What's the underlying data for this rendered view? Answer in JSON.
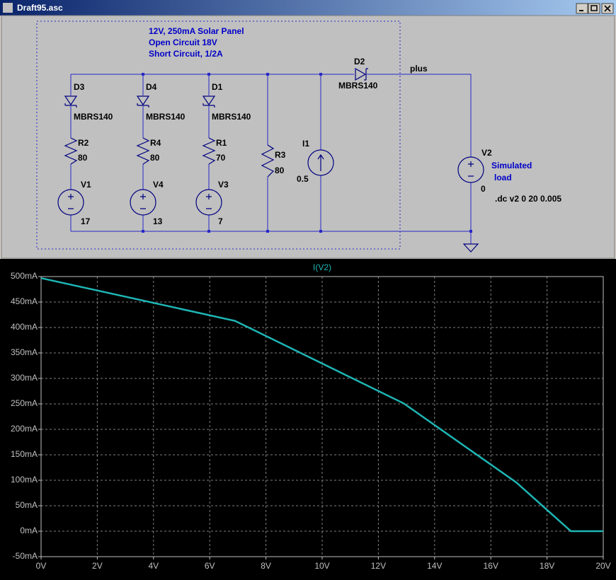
{
  "window": {
    "title": "Draft95.asc"
  },
  "schematic": {
    "notes": [
      "12V, 250mA Solar Panel",
      "Open Circuit 18V",
      "Short Circuit, 1/2A"
    ],
    "components": [
      {
        "name": "D3",
        "value": "MBRS140"
      },
      {
        "name": "D4",
        "value": "MBRS140"
      },
      {
        "name": "D1",
        "value": "MBRS140"
      },
      {
        "name": "R2",
        "value": "80"
      },
      {
        "name": "R4",
        "value": "80"
      },
      {
        "name": "R1",
        "value": "70"
      },
      {
        "name": "R3",
        "value": "80"
      },
      {
        "name": "V1",
        "value": "17"
      },
      {
        "name": "V4",
        "value": "13"
      },
      {
        "name": "V3",
        "value": "7"
      },
      {
        "name": "I1",
        "value": "0.5"
      },
      {
        "name": "D2",
        "value": "MBRS140"
      },
      {
        "name": "V2",
        "value": "0"
      }
    ],
    "net_label": "plus",
    "load_label": [
      "Simulated",
      "load"
    ],
    "directive": ".dc v2 0 20 0.005"
  },
  "chart_data": {
    "type": "line",
    "x": [
      0,
      6.9,
      12.9,
      16.9,
      18.85,
      20
    ],
    "series": [
      {
        "name": "I(V2)",
        "color": "#1fb5b5",
        "values": [
          497,
          413,
          251,
          96,
          0,
          0
        ]
      }
    ],
    "xlim": [
      0,
      20
    ],
    "xticks": [
      {
        "value": 0,
        "label": "0V"
      },
      {
        "value": 2,
        "label": "2V"
      },
      {
        "value": 4,
        "label": "4V"
      },
      {
        "value": 6,
        "label": "6V"
      },
      {
        "value": 8,
        "label": "8V"
      },
      {
        "value": 10,
        "label": "10V"
      },
      {
        "value": 12,
        "label": "12V"
      },
      {
        "value": 14,
        "label": "14V"
      },
      {
        "value": 16,
        "label": "16V"
      },
      {
        "value": 18,
        "label": "18V"
      },
      {
        "value": 20,
        "label": "20V"
      }
    ],
    "ylim": [
      -50,
      500
    ],
    "yticks": [
      {
        "value": -50,
        "label": "-50mA"
      },
      {
        "value": 0,
        "label": "0mA"
      },
      {
        "value": 50,
        "label": "50mA"
      },
      {
        "value": 100,
        "label": "100mA"
      },
      {
        "value": 150,
        "label": "150mA"
      },
      {
        "value": 200,
        "label": "200mA"
      },
      {
        "value": 250,
        "label": "250mA"
      },
      {
        "value": 300,
        "label": "300mA"
      },
      {
        "value": 350,
        "label": "350mA"
      },
      {
        "value": 400,
        "label": "400mA"
      },
      {
        "value": 450,
        "label": "450mA"
      },
      {
        "value": 500,
        "label": "500mA"
      }
    ],
    "grid": true
  }
}
